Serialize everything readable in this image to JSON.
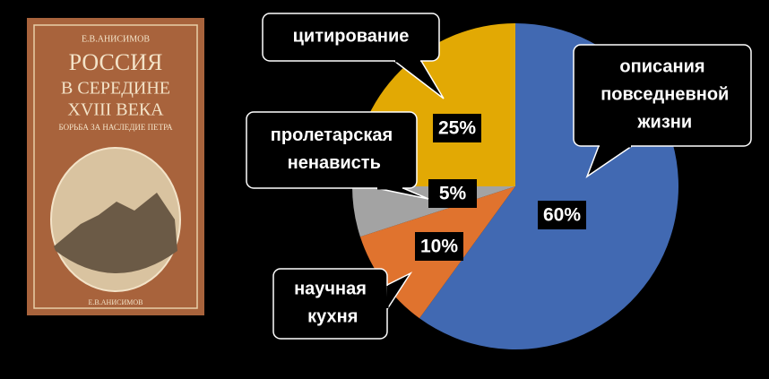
{
  "book_cover": {
    "author": "Е.В.АНИСИМОВ",
    "title_lines": [
      "РОССИЯ",
      "В СЕРЕДИНЕ",
      "XVIII ВЕКА"
    ],
    "subtitle": "БОРЬБА ЗА НАСЛЕДИЕ ПЕТРА",
    "imprint": "Е.В.АНИСИМОВ"
  },
  "chart_data": {
    "type": "pie",
    "categories": [
      "описания повседневной жизни",
      "научная кухня",
      "пролетарская ненависть",
      "цитирование"
    ],
    "values": [
      60,
      10,
      5,
      25
    ],
    "value_labels": [
      "60%",
      "10%",
      "5%",
      "25%"
    ],
    "colors": [
      "#4169b2",
      "#e0732e",
      "#a3a3a3",
      "#e2a904"
    ]
  }
}
